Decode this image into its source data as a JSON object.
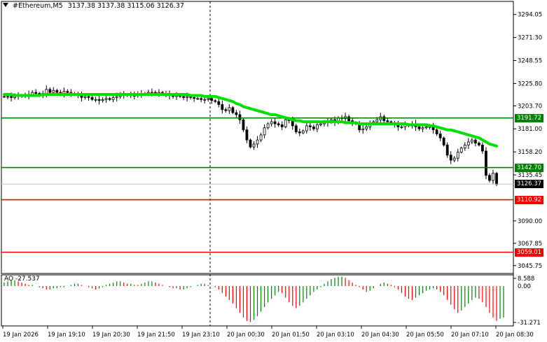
{
  "header": {
    "symbol": "#Ethereum,M5",
    "ohlc": "3137.38 3137.38 3115.06 3126.37",
    "arrow_icon": "triangle-down-icon"
  },
  "price_axis": {
    "ticks": [
      "3294.05",
      "3271.30",
      "3248.55",
      "3225.80",
      "3203.70",
      "3181.00",
      "3158.20",
      "3135.45",
      "3090.00",
      "3067.85",
      "3045.75"
    ]
  },
  "levels": [
    {
      "label": "3191.72",
      "price": 3191.72,
      "color": "#008000"
    },
    {
      "label": "3142.70",
      "price": 3142.7,
      "color": "#008000"
    },
    {
      "label": "3110.92",
      "price": 3110.92,
      "color": "#ff0000"
    },
    {
      "label": "3059.01",
      "price": 3059.01,
      "color": "#ff0000"
    }
  ],
  "current_price": {
    "label": "3126.37",
    "price": 3126.37
  },
  "time_axis": {
    "labels": [
      "19 Jan 2026",
      "19 Jan 19:10",
      "19 Jan 20:30",
      "19 Jan 21:50",
      "19 Jan 23:10",
      "20 Jan 00:30",
      "20 Jan 01:50",
      "20 Jan 03:10",
      "20 Jan 04:30",
      "20 Jan 05:50",
      "20 Jan 07:10",
      "20 Jan 08:30"
    ]
  },
  "ao": {
    "label": "AO -27.537",
    "top_label": "8.588",
    "zero_label": "0.00",
    "bottom_label": "-31.271"
  },
  "colors": {
    "ma": "#00e000",
    "candle": "#000000",
    "ao_up": "#008000",
    "ao_down": "#ff0000",
    "tag_dark": "#000000"
  },
  "chart_data": {
    "type": "candlestick",
    "title": "#Ethereum,M5",
    "ylim": [
      3038,
      3307
    ],
    "x_labels": [
      "19 Jan 2026",
      "19 Jan 19:10",
      "19 Jan 20:30",
      "19 Jan 21:50",
      "19 Jan 23:10",
      "20 Jan 00:30",
      "20 Jan 01:50",
      "20 Jan 03:10",
      "20 Jan 04:30",
      "20 Jan 05:50",
      "20 Jan 07:10",
      "20 Jan 08:30"
    ],
    "close": [
      3213,
      3213,
      3212,
      3214,
      3213,
      3214,
      3214,
      3215,
      3217,
      3216,
      3214,
      3216,
      3220,
      3217,
      3219,
      3217,
      3216,
      3218,
      3217,
      3216,
      3215,
      3214,
      3212,
      3213,
      3212,
      3210,
      3210,
      3209,
      3210,
      3211,
      3210,
      3212,
      3213,
      3215,
      3214,
      3215,
      3214,
      3214,
      3216,
      3215,
      3216,
      3217,
      3217,
      3216,
      3217,
      3216,
      3215,
      3214,
      3213,
      3214,
      3213,
      3212,
      3213,
      3212,
      3211,
      3211,
      3210,
      3210,
      3211,
      3209,
      3208,
      3205,
      3200,
      3199,
      3202,
      3197,
      3195,
      3190,
      3180,
      3170,
      3163,
      3166,
      3170,
      3175,
      3182,
      3186,
      3188,
      3186,
      3185,
      3183,
      3190,
      3189,
      3184,
      3178,
      3177,
      3179,
      3184,
      3183,
      3181,
      3185,
      3186,
      3187,
      3188,
      3190,
      3187,
      3192,
      3191,
      3193,
      3189,
      3187,
      3186,
      3180,
      3181,
      3183,
      3186,
      3188,
      3190,
      3193,
      3189,
      3188,
      3186,
      3185,
      3183,
      3183,
      3185,
      3184,
      3186,
      3183,
      3181,
      3182,
      3183,
      3183,
      3180,
      3176,
      3172,
      3165,
      3155,
      3150,
      3152,
      3158,
      3162,
      3165,
      3168,
      3170,
      3167,
      3165,
      3159,
      3135,
      3130,
      3137,
      3126
    ],
    "ma": [
      3215,
      3215,
      3215,
      3214,
      3214,
      3214,
      3214,
      3214,
      3214,
      3214,
      3214,
      3215,
      3215,
      3215,
      3215,
      3215,
      3215,
      3215,
      3215,
      3215,
      3215,
      3215,
      3215,
      3215,
      3215,
      3215,
      3215,
      3215,
      3215,
      3215,
      3215,
      3215,
      3215,
      3215,
      3215,
      3215,
      3215,
      3215,
      3215,
      3215,
      3215,
      3215,
      3215,
      3215,
      3215,
      3215,
      3215,
      3215,
      3215,
      3215,
      3215,
      3215,
      3215,
      3214,
      3214,
      3214,
      3214,
      3213,
      3213,
      3213,
      3213,
      3212,
      3211,
      3210,
      3209,
      3208,
      3206,
      3205,
      3203,
      3202,
      3201,
      3200,
      3199,
      3198,
      3197,
      3196,
      3195,
      3195,
      3194,
      3193,
      3192,
      3191,
      3190,
      3189,
      3189,
      3188,
      3188,
      3188,
      3188,
      3188,
      3188,
      3188,
      3188,
      3188,
      3188,
      3188,
      3188,
      3187,
      3187,
      3187,
      3187,
      3186,
      3186,
      3186,
      3186,
      3186,
      3186,
      3186,
      3186,
      3186,
      3186,
      3186,
      3186,
      3186,
      3186,
      3185,
      3185,
      3185,
      3185,
      3185,
      3185,
      3184,
      3184,
      3183,
      3182,
      3181,
      3180,
      3180,
      3179,
      3178,
      3177,
      3176,
      3175,
      3174,
      3173,
      3172,
      3170,
      3168,
      3166,
      3165,
      3164
    ],
    "ao": [
      3,
      4,
      5,
      5,
      4,
      3,
      2,
      1,
      1,
      0,
      -1,
      -2,
      -3,
      -3,
      -2,
      -2,
      -1,
      -1,
      0,
      1,
      2,
      2,
      1,
      0,
      -1,
      -2,
      -3,
      -2,
      -1,
      1,
      2,
      3,
      4,
      4,
      3,
      2,
      2,
      1,
      1,
      2,
      3,
      4,
      4,
      3,
      2,
      1,
      0,
      -1,
      -2,
      -2,
      -3,
      -3,
      -2,
      -1,
      0,
      1,
      2,
      2,
      1,
      0,
      -1,
      -3,
      -6,
      -9,
      -12,
      -15,
      -19,
      -23,
      -27,
      -30,
      -31,
      -29,
      -26,
      -22,
      -18,
      -14,
      -11,
      -8,
      -5,
      -6,
      -10,
      -14,
      -17,
      -19,
      -17,
      -14,
      -11,
      -8,
      -5,
      -3,
      -1,
      2,
      4,
      6,
      7,
      8,
      8,
      7,
      5,
      3,
      1,
      -1,
      -3,
      -5,
      -4,
      -2,
      0,
      2,
      3,
      2,
      1,
      -1,
      -3,
      -6,
      -9,
      -11,
      -12,
      -10,
      -8,
      -6,
      -4,
      -3,
      -2,
      -3,
      -5,
      -8,
      -12,
      -16,
      -20,
      -23,
      -21,
      -18,
      -15,
      -12,
      -10,
      -11,
      -14,
      -18,
      -23,
      -27,
      -30,
      -28,
      -27
    ]
  }
}
